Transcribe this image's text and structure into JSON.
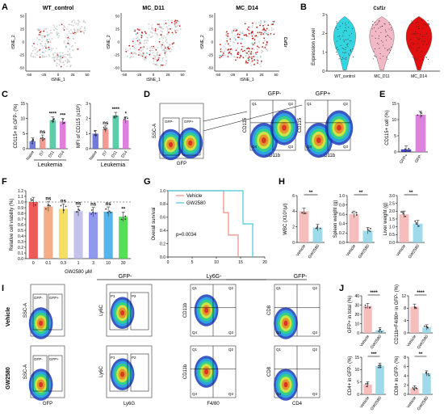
{
  "panels": {
    "A": {
      "letter": "A",
      "plots": [
        {
          "title": "WT_control",
          "ylabel": "tSNE_2",
          "xlabel": "tSNE_1"
        },
        {
          "title": "MC_D11",
          "ylabel": "tSNE_2",
          "xlabel": "tSNE_1"
        },
        {
          "title": "MC_D14",
          "ylabel": "tSNE_2",
          "xlabel": "tSNE_1",
          "gene": "Csf1r"
        }
      ],
      "yticks": [
        "50",
        "25",
        "0",
        "-25",
        "-50"
      ],
      "xticks": [
        "-50",
        "-25",
        "0",
        "25",
        "50"
      ],
      "colors": {
        "low": "#cfcfcf",
        "high": "#c0221b",
        "mid": "#53c8c8"
      }
    },
    "B": {
      "letter": "B",
      "title": "Csf1r",
      "ylabel": "Expression Level"
    },
    "C": {
      "letter": "C",
      "group": "Leukemia"
    },
    "D": {
      "letter": "D",
      "headers": [
        "GFP-",
        "GFP+"
      ],
      "gates": [
        "GFP-",
        "GFP+"
      ],
      "ylabels": [
        "SSC-A",
        "CD115",
        "CD115"
      ],
      "xlabels": [
        "GFP",
        "CD11b",
        "CD11b"
      ],
      "quads": [
        "Q1",
        "Q2",
        "Q3",
        "Q4"
      ]
    },
    "E": {
      "letter": "E"
    },
    "F": {
      "letter": "F",
      "xlabel": "GW2580 μM",
      "sig": [
        "ns",
        "ns",
        "ns",
        "ns",
        "ns",
        "**"
      ]
    },
    "G": {
      "letter": "G",
      "legend": [
        "Vehicle",
        "GW2580"
      ],
      "pvalue": "p=0.0034"
    },
    "H": {
      "letter": "H",
      "sig": [
        "**",
        "**",
        "**"
      ]
    },
    "I": {
      "letter": "I",
      "rows": [
        "Vehicle",
        "GW2580"
      ],
      "headers": [
        "GFP-",
        "Ly6G-",
        "GFP-"
      ],
      "xlabels": [
        "GFP",
        "Ly6G",
        "F4/80",
        "CD4"
      ],
      "ylabels": [
        "SSC-A",
        "Ly6C",
        "CD11b",
        "CD8"
      ],
      "gates": [
        "GFP-",
        "GFP+",
        "P1",
        "P2",
        "Q1",
        "Q2",
        "Q3",
        "Q4"
      ]
    },
    "J": {
      "letter": "J",
      "sig": [
        "****",
        "****",
        "***",
        "**"
      ]
    }
  },
  "chart_data": [
    {
      "id": "B",
      "type": "violin",
      "title": "Csf1r",
      "categories": [
        "WT_control",
        "MC_D11",
        "MC_D14"
      ],
      "ylabel": "Expression Level",
      "ylim": [
        0,
        3
      ],
      "yticks": [
        0,
        1,
        2,
        3
      ],
      "colors": [
        "#33d6e0",
        "#f2b8c6",
        "#e01010"
      ]
    },
    {
      "id": "C1",
      "type": "bar",
      "categories": [
        "Naive",
        "D7",
        "D11",
        "D14"
      ],
      "values": [
        2.5,
        3.5,
        9.5,
        9
      ],
      "ylabel": "CD115+ in GFP- (%)",
      "ylim": [
        0,
        15
      ],
      "yticks": [
        0,
        5,
        10,
        15
      ],
      "sig": [
        "",
        "ns",
        "****",
        "***"
      ],
      "colors": [
        "#5a63d8",
        "#f08a80",
        "#42c29a",
        "#d86ad8"
      ]
    },
    {
      "id": "C2",
      "type": "bar",
      "categories": [
        "Naive",
        "D7",
        "D11",
        "D14"
      ],
      "values": [
        1.0,
        1.3,
        2.2,
        1.9
      ],
      "ylabel": "MFI of CD115 (x10³)",
      "ylim": [
        0,
        3
      ],
      "yticks": [
        0,
        1,
        2,
        3
      ],
      "sig": [
        "",
        "ns",
        "****",
        "*"
      ],
      "colors": [
        "#5a63d8",
        "#f08a80",
        "#42c29a",
        "#d86ad8"
      ]
    },
    {
      "id": "E",
      "type": "bar",
      "categories": [
        "GFP+",
        "GFP-"
      ],
      "values": [
        0.8,
        11.5
      ],
      "ylabel": "CD115+ cell (%)",
      "ylim": [
        0,
        15
      ],
      "yticks": [
        0,
        5,
        10,
        15
      ],
      "colors": [
        "#2727b8",
        "#d86ad8"
      ]
    },
    {
      "id": "F",
      "type": "bar",
      "categories": [
        "0",
        "0.1",
        "0.3",
        "1",
        "3",
        "10",
        "30"
      ],
      "values": [
        1.0,
        0.92,
        0.88,
        0.84,
        0.82,
        0.83,
        0.74
      ],
      "ylabel": "Relative cell viability (%)",
      "xlabel": "GW2580 μM",
      "ylim": [
        0,
        1.2
      ],
      "yticks": [
        0.0,
        0.1,
        0.2,
        0.3,
        0.4,
        0.5,
        0.6,
        0.7,
        0.8,
        0.9,
        1.0,
        1.1,
        1.2
      ],
      "sig": [
        "",
        "ns",
        "ns",
        "ns",
        "ns",
        "ns",
        "**"
      ],
      "colors": [
        "#ee3c3c",
        "#f2a070",
        "#f2d84a",
        "#b8b8e8",
        "#7c88e8",
        "#3aa8e8",
        "#3ad83a"
      ]
    },
    {
      "id": "G",
      "type": "line",
      "ylabel": "Overall survival",
      "xlim": [
        0,
        20
      ],
      "ylim": [
        0,
        1.0
      ],
      "xticks": [
        0,
        5,
        10,
        15,
        20
      ],
      "yticks": [
        0.0,
        0.2,
        0.4,
        0.6,
        0.8,
        1.0
      ],
      "series": [
        {
          "name": "Vehicle",
          "x": [
            0,
            11.5,
            11.5,
            12.5,
            12.5,
            14.5,
            14.5
          ],
          "y": [
            1.0,
            1.0,
            0.67,
            0.67,
            0.33,
            0.33,
            0
          ],
          "color": "#f08a80"
        },
        {
          "name": "GW2580",
          "x": [
            0,
            15.5,
            15.5,
            17.5,
            17.5
          ],
          "y": [
            1.0,
            1.0,
            0.5,
            0.5,
            0
          ],
          "color": "#48c8d8"
        }
      ],
      "pvalue": "p=0.0034"
    },
    {
      "id": "H1",
      "type": "bar",
      "categories": [
        "Vehicle",
        "GW2580"
      ],
      "values": [
        4.0,
        1.9
      ],
      "ylabel": "WBC (X10⁹/μl)",
      "ylim": [
        0,
        6
      ],
      "yticks": [
        0,
        2,
        4,
        6
      ],
      "sig": "**",
      "colors": [
        "#f5b2b2",
        "#8ed4e8"
      ]
    },
    {
      "id": "H2",
      "type": "bar",
      "categories": [
        "Vehicle",
        "GW2580"
      ],
      "values": [
        0.6,
        0.25
      ],
      "ylabel": "Spleen weight (g)",
      "ylim": [
        0,
        1.0
      ],
      "yticks": [
        0.0,
        0.2,
        0.4,
        0.6,
        0.8,
        1.0
      ],
      "sig": "**",
      "colors": [
        "#f5b2b2",
        "#8ed4e8"
      ]
    },
    {
      "id": "H3",
      "type": "bar",
      "categories": [
        "Vehicle",
        "GW2580"
      ],
      "values": [
        1.8,
        1.2
      ],
      "ylabel": "Liver weight (g)",
      "ylim": [
        0,
        3
      ],
      "yticks": [
        0.0,
        0.5,
        1.0,
        1.5,
        2.0,
        2.5,
        3.0
      ],
      "sig": "**",
      "colors": [
        "#f5b2b2",
        "#8ed4e8"
      ]
    },
    {
      "id": "J1",
      "type": "bar",
      "categories": [
        "Vehicle",
        "GW2580"
      ],
      "values": [
        29,
        3
      ],
      "ylabel": "GFP+ in total (%)",
      "ylim": [
        0,
        40
      ],
      "yticks": [
        0,
        10,
        20,
        30,
        40
      ],
      "sig": "****",
      "colors": [
        "#f5b2b2",
        "#8ed4e8"
      ]
    },
    {
      "id": "J2",
      "type": "bar",
      "categories": [
        "Vehicle",
        "GW2580"
      ],
      "values": [
        8.5,
        1.8
      ],
      "ylabel": "CD11b+F4/80+ in GFP- (%)",
      "ylim": [
        0,
        12
      ],
      "yticks": [
        0,
        4,
        8,
        12
      ],
      "sig": "****",
      "colors": [
        "#f5b2b2",
        "#8ed4e8"
      ]
    },
    {
      "id": "J3",
      "type": "bar",
      "categories": [
        "Vehicle",
        "GW2580"
      ],
      "values": [
        4,
        11.5
      ],
      "ylabel": "CD4+ in GFP- (%)",
      "ylim": [
        0,
        15
      ],
      "yticks": [
        0,
        5,
        10,
        15
      ],
      "sig": "***",
      "colors": [
        "#f5b2b2",
        "#8ed4e8"
      ]
    },
    {
      "id": "J4",
      "type": "bar",
      "categories": [
        "Vehicle",
        "GW2580"
      ],
      "values": [
        1.3,
        4.5
      ],
      "ylabel": "CD8+ in GFP- (%)",
      "ylim": [
        0,
        8
      ],
      "yticks": [
        0,
        2,
        4,
        6,
        8
      ],
      "sig": "**",
      "colors": [
        "#f5b2b2",
        "#8ed4e8"
      ]
    }
  ]
}
